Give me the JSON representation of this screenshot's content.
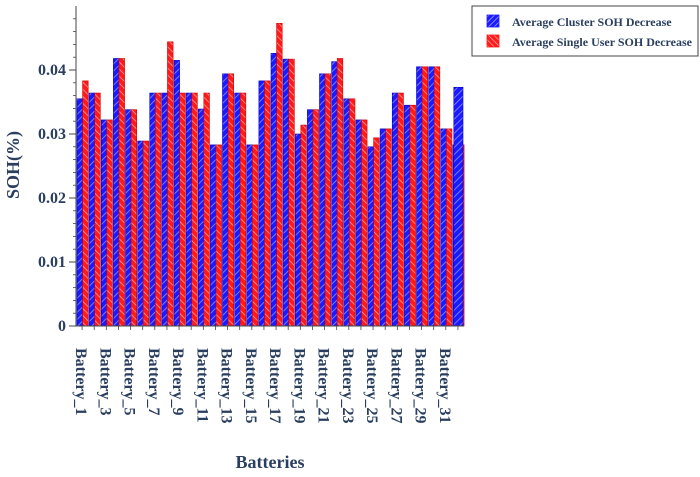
{
  "chart_data": {
    "type": "bar",
    "title": "",
    "xlabel": "Batteries",
    "ylabel": "SOH(%)",
    "ylim": [
      0,
      0.05
    ],
    "yticks": [
      0,
      0.01,
      0.02,
      0.03,
      0.04
    ],
    "ytick_labels": [
      "0",
      "0.01",
      "0.02",
      "0.03",
      "0.04"
    ],
    "categories": [
      "Battery_1",
      "Battery_2",
      "Battery_3",
      "Battery_4",
      "Battery_5",
      "Battery_6",
      "Battery_7",
      "Battery_8",
      "Battery_9",
      "Battery_10",
      "Battery_11",
      "Battery_12",
      "Battery_13",
      "Battery_14",
      "Battery_15",
      "Battery_16",
      "Battery_17",
      "Battery_18",
      "Battery_19",
      "Battery_20",
      "Battery_21",
      "Battery_22",
      "Battery_23",
      "Battery_24",
      "Battery_25",
      "Battery_26",
      "Battery_27",
      "Battery_28",
      "Battery_29",
      "Battery_30",
      "Battery_31",
      "Battery_32"
    ],
    "shown_tick_labels": [
      "Battery_1",
      "Battery_3",
      "Battery_5",
      "Battery_7",
      "Battery_9",
      "Battery_11",
      "Battery_13",
      "Battery_15",
      "Battery_17",
      "Battery_19",
      "Battery_21",
      "Battery_23",
      "Battery_25",
      "Battery_27",
      "Battery_29",
      "Battery_31"
    ],
    "series": [
      {
        "name": "Average Cluster SOH Decrease",
        "color": "#1a1aff",
        "values": [
          0.0355,
          0.0364,
          0.0322,
          0.0418,
          0.0338,
          0.0289,
          0.0364,
          0.0364,
          0.0415,
          0.0364,
          0.0339,
          0.0283,
          0.0394,
          0.0364,
          0.0283,
          0.0383,
          0.0426,
          0.0417,
          0.03,
          0.0338,
          0.0394,
          0.0413,
          0.0355,
          0.0322,
          0.028,
          0.0308,
          0.0364,
          0.0345,
          0.0405,
          0.0405,
          0.0308,
          0.0283
        ]
      },
      {
        "name": "Average Single User SOH Decrease",
        "color": "#ff1a1a",
        "values": [
          0.0383,
          0.0364,
          0.0322,
          0.0418,
          0.0338,
          0.0289,
          0.0364,
          0.0444,
          0.0364,
          0.0364,
          0.0364,
          0.0283,
          0.0394,
          0.0364,
          0.0283,
          0.0383,
          0.0473,
          0.0417,
          0.0314,
          0.0338,
          0.0394,
          0.0418,
          0.0355,
          0.0322,
          0.0294,
          0.0308,
          0.0364,
          0.0345,
          0.0405,
          0.0405,
          0.0308,
          0.0283
        ]
      }
    ],
    "last_category_extra": {
      "series_index": 0,
      "value": 0.0373
    },
    "grid": false,
    "legend_position": "top-right"
  }
}
